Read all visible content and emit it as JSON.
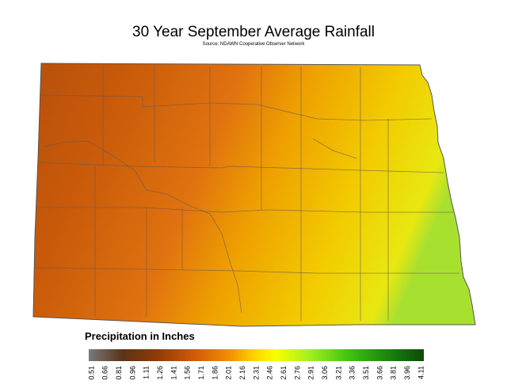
{
  "title": "30 Year September Average Rainfall",
  "source": "Source: NDAWN Cooperative Observer Network",
  "legend": {
    "title": "Precipitation in Inches",
    "ticks": [
      0.51,
      0.66,
      0.81,
      0.96,
      1.11,
      1.26,
      1.41,
      1.56,
      1.71,
      1.86,
      2.01,
      2.16,
      2.31,
      2.46,
      2.61,
      2.76,
      2.91,
      3.06,
      3.21,
      3.36,
      3.51,
      3.66,
      3.81,
      3.96,
      4.11
    ]
  }
}
